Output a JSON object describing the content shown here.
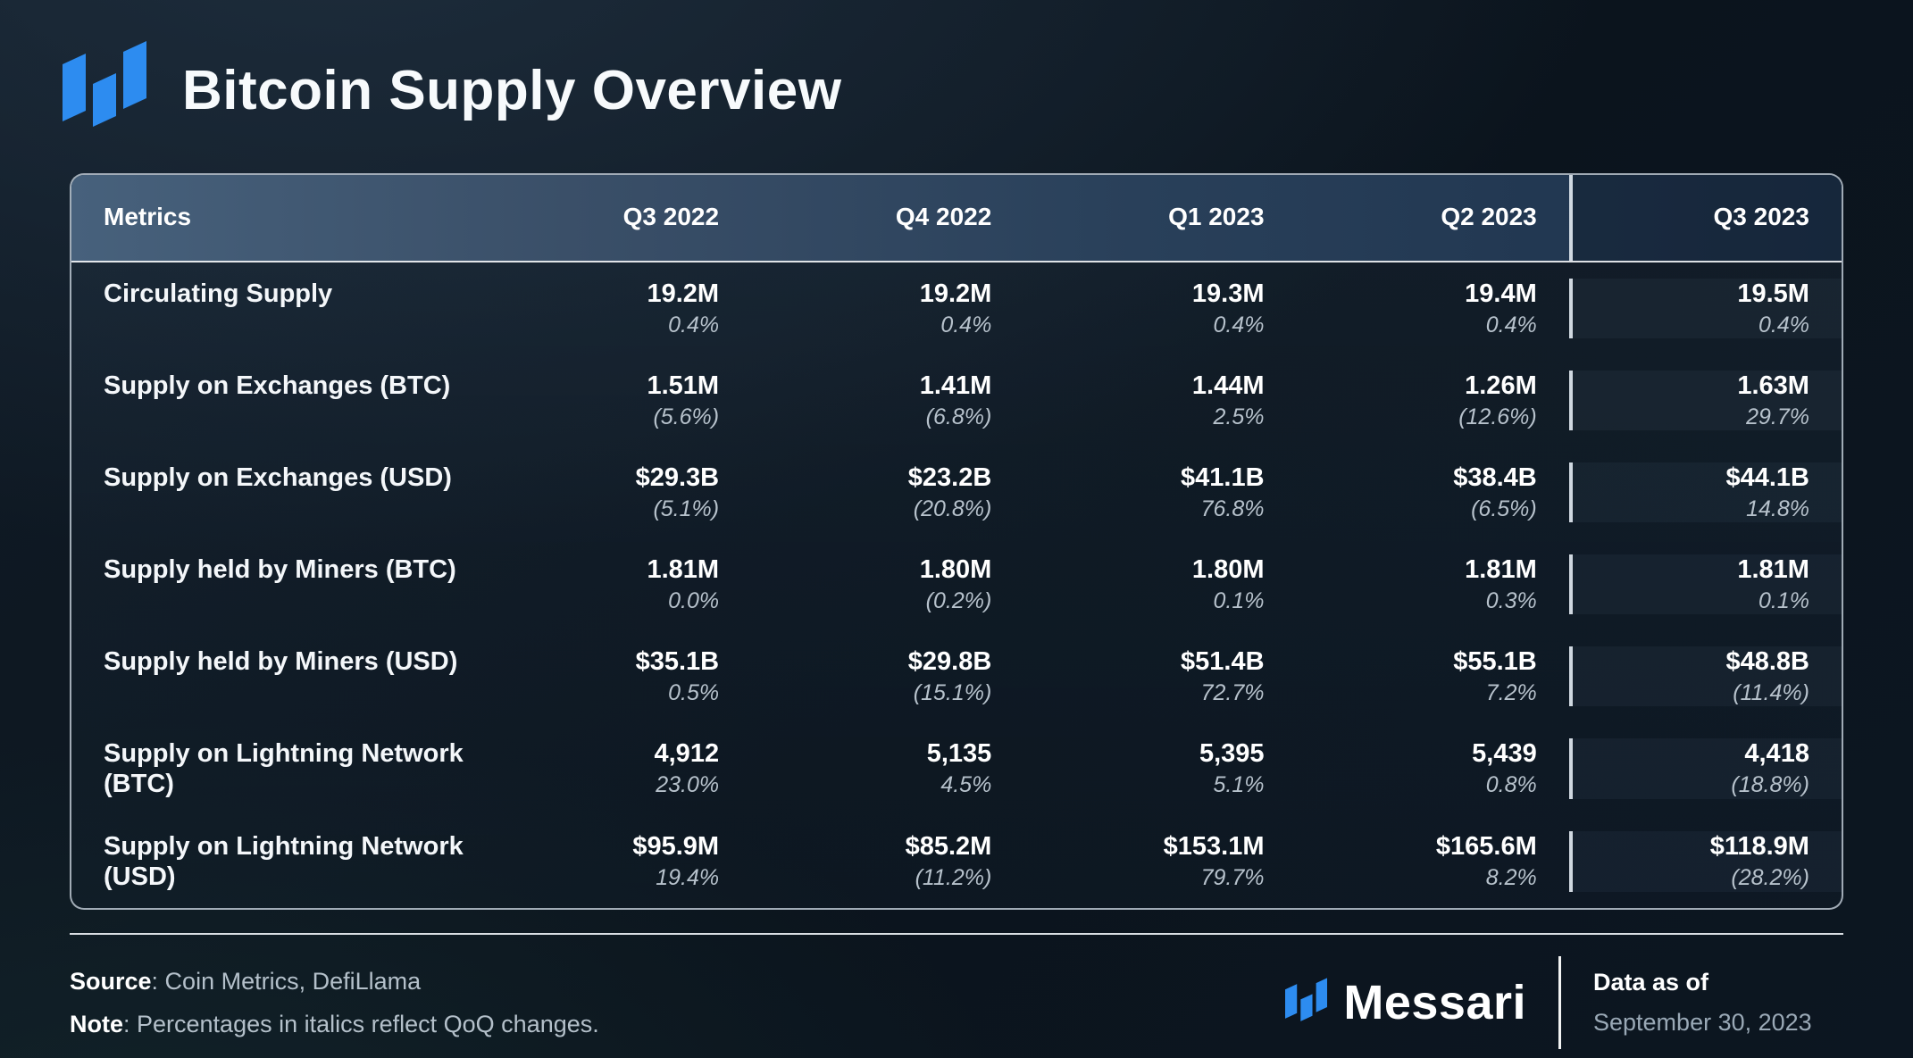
{
  "header": {
    "title": "Bitcoin Supply Overview"
  },
  "colors": {
    "brand_blue": "#2D8CF0"
  },
  "chart_data": {
    "type": "table",
    "title": "Bitcoin Supply Overview",
    "columns": [
      "Metrics",
      "Q3 2022",
      "Q4 2022",
      "Q1 2023",
      "Q2 2023",
      "Q3 2023"
    ],
    "highlighted_column": "Q3 2023",
    "rows": [
      {
        "metric": "Circulating Supply",
        "values": [
          "19.2M",
          "19.2M",
          "19.3M",
          "19.4M",
          "19.5M"
        ],
        "qoq_changes": [
          "0.4%",
          "0.4%",
          "0.4%",
          "0.4%",
          "0.4%"
        ]
      },
      {
        "metric": "Supply on Exchanges (BTC)",
        "values": [
          "1.51M",
          "1.41M",
          "1.44M",
          "1.26M",
          "1.63M"
        ],
        "qoq_changes": [
          "(5.6%)",
          "(6.8%)",
          "2.5%",
          "(12.6%)",
          "29.7%"
        ]
      },
      {
        "metric": "Supply on Exchanges (USD)",
        "values": [
          "$29.3B",
          "$23.2B",
          "$41.1B",
          "$38.4B",
          "$44.1B"
        ],
        "qoq_changes": [
          "(5.1%)",
          "(20.8%)",
          "76.8%",
          "(6.5%)",
          "14.8%"
        ]
      },
      {
        "metric": "Supply held by Miners (BTC)",
        "values": [
          "1.81M",
          "1.80M",
          "1.80M",
          "1.81M",
          "1.81M"
        ],
        "qoq_changes": [
          "0.0%",
          "(0.2%)",
          "0.1%",
          "0.3%",
          "0.1%"
        ]
      },
      {
        "metric": "Supply held by Miners (USD)",
        "values": [
          "$35.1B",
          "$29.8B",
          "$51.4B",
          "$55.1B",
          "$48.8B"
        ],
        "qoq_changes": [
          "0.5%",
          "(15.1%)",
          "72.7%",
          "7.2%",
          "(11.4%)"
        ]
      },
      {
        "metric": "Supply on Lightning Network (BTC)",
        "values": [
          "4,912",
          "5,135",
          "5,395",
          "5,439",
          "4,418"
        ],
        "qoq_changes": [
          "23.0%",
          "4.5%",
          "5.1%",
          "0.8%",
          "(18.8%)"
        ]
      },
      {
        "metric": "Supply on Lightning Network (USD)",
        "values": [
          "$95.9M",
          "$85.2M",
          "$153.1M",
          "$165.6M",
          "$118.9M"
        ],
        "qoq_changes": [
          "19.4%",
          "(11.2%)",
          "79.7%",
          "8.2%",
          "(28.2%)"
        ]
      }
    ]
  },
  "footer": {
    "source_label": "Source",
    "source_rest": ": Coin Metrics, DefiLlama",
    "note_label": "Note",
    "note_rest": ": Percentages in italics reflect QoQ changes.",
    "brand_name": "Messari",
    "data_as_of_label": "Data as of",
    "data_as_of_value": "September 30, 2023"
  }
}
